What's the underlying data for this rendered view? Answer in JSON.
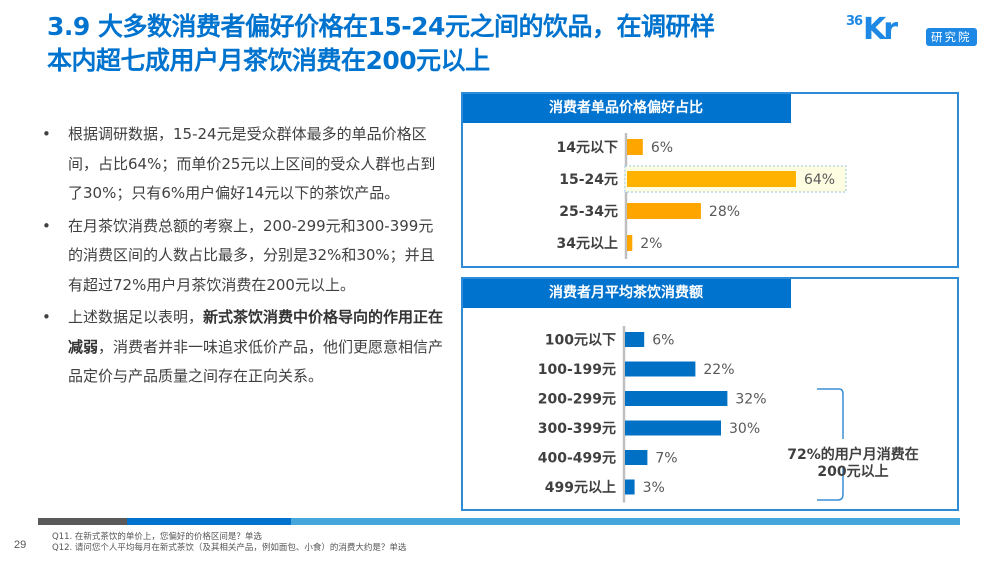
{
  "header": {
    "title_line1": "3.9 大多数消费者偏好价格在15-24元之间的饮品，在调研样",
    "title_line2": "本内超七成用户月茶饮消费在200元以上",
    "logo_number": "36",
    "logo_letters": "Kr",
    "logo_badge": "研究院"
  },
  "bullets": [
    {
      "marker": "•",
      "text": "根据调研数据，15-24元是受众群体最多的单品价格区间，占比64%；而单价25元以上区间的受众人群也占到了30%；只有6%用户偏好14元以下的茶饮产品。"
    },
    {
      "marker": "•",
      "text": "在月茶饮消费总额的考察上，200-299元和300-399元的消费区间的人数占比最多，分别是32%和30%；并且有超过72%用户月茶饮消费在200元以上。"
    },
    {
      "marker": "•",
      "text_before": "上述数据足以表明，",
      "text_bold": "新式茶饮消费中价格导向的作用正在减弱",
      "text_after": "，消费者并非一味追求低价产品，他们更愿意相信产品定价与产品质量之间存在正向关系。"
    }
  ],
  "chart_data": [
    {
      "type": "bar",
      "orientation": "horizontal",
      "title": "消费者单品价格偏好占比",
      "categories": [
        "14元以下",
        "15-24元",
        "25-34元",
        "34元以上"
      ],
      "values": [
        6,
        64,
        28,
        2
      ],
      "value_labels": [
        "6%",
        "64%",
        "28%",
        "2%"
      ],
      "unit": "%",
      "highlight_index": 1,
      "colors": {
        "bar": "#FFA500",
        "highlight_bar": "#FFB300",
        "highlight_bg": "#FFFDE1",
        "highlight_border": "#8FC3E0"
      },
      "xlim": [
        0,
        100
      ],
      "grid": false
    },
    {
      "type": "bar",
      "orientation": "horizontal",
      "title": "消费者月平均茶饮消费额",
      "categories": [
        "100元以下",
        "100-199元",
        "200-299元",
        "300-399元",
        "400-499元",
        "499元以上"
      ],
      "values": [
        6,
        22,
        32,
        30,
        7,
        3
      ],
      "value_labels": [
        "6%",
        "22%",
        "32%",
        "30%",
        "7%",
        "3%"
      ],
      "unit": "%",
      "colors": {
        "bar": "#0070C4",
        "bracket": "#3A8FD6"
      },
      "annotation": {
        "line1": "72%的用户月消费在",
        "line2": "200元以上"
      },
      "xlim": [
        0,
        100
      ],
      "grid": false
    }
  ],
  "footer": {
    "page_number": "29",
    "notes": [
      "Q11. 在新式茶饮的单价上，您偏好的价格区间是？单选",
      "Q12. 请问您个人平均每月在新式茶饮（及其相关产品，例如面包、小食）的消费大约是？单选"
    ],
    "stripe_colors": [
      "#595959",
      "#0073CF",
      "#45A6DC"
    ]
  }
}
